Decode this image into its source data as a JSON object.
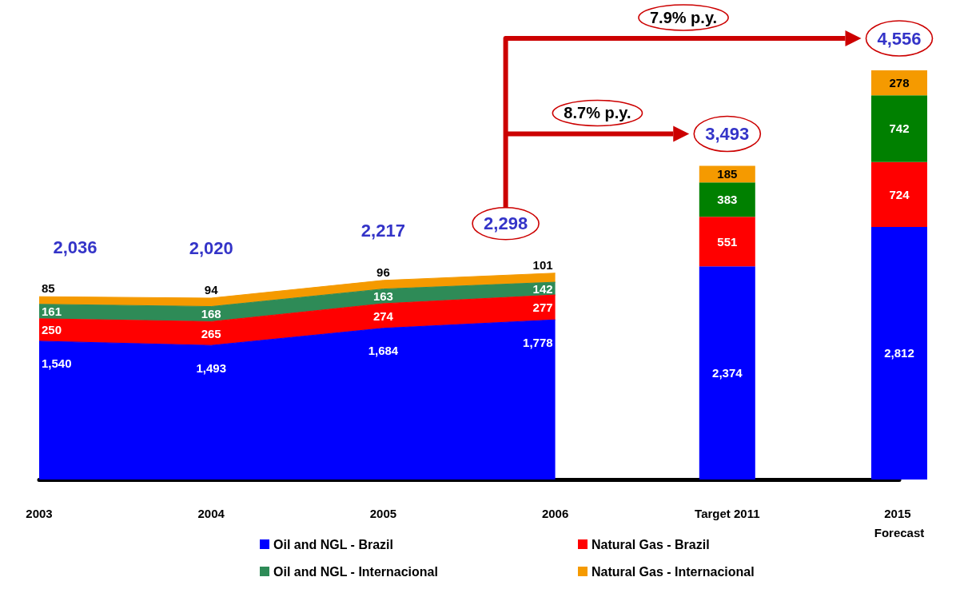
{
  "chart_data": {
    "type": "area",
    "stacked": true,
    "legend": "bottom",
    "categories": [
      "2003",
      "2004",
      "2005",
      "2006",
      "Target 2011",
      "2015 Forecast"
    ],
    "series": [
      {
        "name": "Oil and NGL - Brazil",
        "color": "#0000ff",
        "values": [
          1540,
          1493,
          1684,
          1778,
          null,
          null
        ],
        "value_labels": [
          "1,540",
          "1,493",
          "1,684",
          "1,778",
          null,
          null
        ]
      },
      {
        "name": "Natural Gas - Brazil",
        "color": "#ff0000",
        "values": [
          250,
          265,
          274,
          277,
          null,
          null
        ],
        "value_labels": [
          "250",
          "265",
          "274",
          "277",
          null,
          null
        ]
      },
      {
        "name": "Oil and NGL - Internacional",
        "color": "#2e8b57",
        "values": [
          161,
          168,
          163,
          142,
          null,
          null
        ],
        "value_labels": [
          "161",
          "168",
          "163",
          "142",
          null,
          null
        ]
      },
      {
        "name": "Natural Gas - Internacional",
        "color": "#f59a00",
        "values": [
          85,
          94,
          96,
          101,
          null,
          null
        ],
        "value_labels": [
          "85",
          "94",
          "96",
          "101",
          null,
          null
        ]
      },
      {
        "type": "bar",
        "color": "#0000ff",
        "values": [
          null,
          null,
          null,
          null,
          2374,
          2812
        ],
        "value_labels": [
          null,
          null,
          null,
          null,
          "2,374",
          "2,812"
        ]
      },
      {
        "type": "bar",
        "color": "#ff0000",
        "values": [
          null,
          null,
          null,
          null,
          551,
          724
        ],
        "value_labels": [
          null,
          null,
          null,
          null,
          "551",
          "724"
        ]
      },
      {
        "type": "bar",
        "color": "#008000",
        "values": [
          null,
          null,
          null,
          null,
          383,
          742
        ],
        "value_labels": [
          null,
          null,
          null,
          null,
          "383",
          "742"
        ]
      },
      {
        "type": "bar",
        "color": "#f59a00",
        "values": [
          null,
          null,
          null,
          null,
          185,
          278
        ],
        "value_labels": [
          null,
          null,
          null,
          null,
          "185",
          "278"
        ]
      }
    ],
    "totals": [
      "2,036",
      "2,020",
      "2,217",
      "2,298",
      "3,493",
      "4,556"
    ],
    "annotations": [
      "7.9% p.y.",
      "8.7% p.y."
    ]
  }
}
